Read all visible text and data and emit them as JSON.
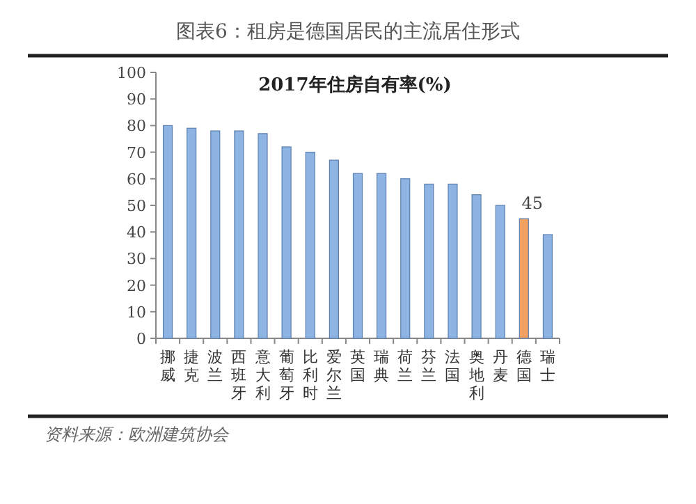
{
  "chart_data": {
    "type": "bar",
    "title": "图表6：租房是德国居民的主流居住形式",
    "subtitle": "2017年住房自有率(%)",
    "categories": [
      "挪威",
      "捷克",
      "波兰",
      "西班牙",
      "意大利",
      "葡萄牙",
      "比利时",
      "爱尔兰",
      "英国",
      "瑞典",
      "荷兰",
      "芬兰",
      "法国",
      "奥地利",
      "丹麦",
      "德国",
      "瑞士"
    ],
    "values": [
      80,
      79,
      78,
      78,
      77,
      72,
      70,
      67,
      62,
      62,
      60,
      58,
      58,
      54,
      50,
      45,
      39
    ],
    "colors": [
      "#8db4e2",
      "#8db4e2",
      "#8db4e2",
      "#8db4e2",
      "#8db4e2",
      "#8db4e2",
      "#8db4e2",
      "#8db4e2",
      "#8db4e2",
      "#8db4e2",
      "#8db4e2",
      "#8db4e2",
      "#8db4e2",
      "#8db4e2",
      "#8db4e2",
      "#f0a060",
      "#8db4e2"
    ],
    "value_labels": [
      null,
      null,
      null,
      null,
      null,
      null,
      null,
      null,
      null,
      null,
      null,
      null,
      null,
      null,
      null,
      "45",
      null
    ],
    "ylim": [
      0,
      100
    ],
    "yticks": [
      0,
      10,
      20,
      30,
      40,
      50,
      60,
      70,
      80,
      90,
      100
    ],
    "grid": false,
    "annotations": [
      "资料来源：欧洲建筑协会"
    ]
  }
}
